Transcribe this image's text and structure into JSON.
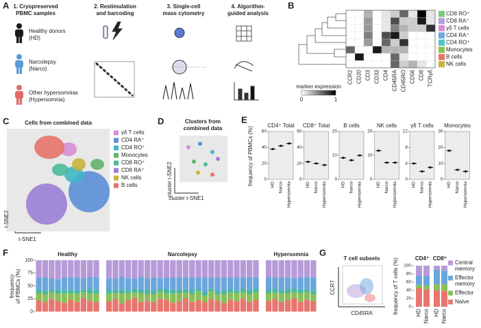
{
  "panel_a": {
    "label": "A",
    "steps": [
      [
        "1. Cryopreserved",
        "PBMC samples"
      ],
      [
        "2. Restimulation",
        "and barcoding"
      ],
      [
        "3. Single-cell",
        "mass cytometry"
      ],
      [
        "4. Algorithm-",
        "guided analysis"
      ]
    ],
    "groups": [
      {
        "lines": [
          "Healthy donors",
          "(HD)"
        ],
        "color": "#1a1a1a"
      },
      {
        "lines": [
          "Narcolepsy",
          "(Narco)"
        ],
        "color": "#5b9bd5"
      },
      {
        "lines": [
          "Other hypersomnias",
          "(Hypersomnia)"
        ],
        "color": "#e06a6a"
      }
    ]
  },
  "panel_b": {
    "label": "B",
    "markers": [
      "CCR2",
      "CD20",
      "CD3",
      "CD33",
      "CD4",
      "CD45RA",
      "CD45RO",
      "CD56",
      "CD8",
      "TCRγδ"
    ],
    "populations": [
      {
        "name": "CD8 RO⁺",
        "color": "#7fc97f"
      },
      {
        "name": "CD8 RA⁺",
        "color": "#b39ddb"
      },
      {
        "name": "γδ T cells",
        "color": "#d58fd3"
      },
      {
        "name": "CD4 RA⁺",
        "color": "#6fa8dc"
      },
      {
        "name": "CD4 RO⁺",
        "color": "#4fc3c9"
      },
      {
        "name": "Monocytes",
        "color": "#8bc34a"
      },
      {
        "name": "B cells",
        "color": "#e8736a"
      },
      {
        "name": "NK cells",
        "color": "#c8b43a"
      }
    ],
    "heatmap": [
      [
        0,
        0,
        0.3,
        0,
        0.1,
        0.2,
        0.6,
        0.1,
        1,
        0.1
      ],
      [
        0,
        0,
        0.4,
        0,
        0.1,
        0.7,
        0.2,
        0.2,
        0.9,
        0.1
      ],
      [
        0,
        0,
        0.4,
        0,
        0.1,
        0.5,
        0.3,
        0.2,
        0.2,
        0.8
      ],
      [
        0,
        0,
        0.5,
        0,
        0.7,
        0.9,
        0.2,
        0,
        0,
        0
      ],
      [
        0,
        0,
        0.4,
        0,
        0.6,
        0.2,
        0.8,
        0,
        0,
        0
      ],
      [
        0.6,
        0,
        0,
        0.9,
        0.3,
        0.3,
        0.3,
        0,
        0,
        0
      ],
      [
        0,
        0.9,
        0,
        0,
        0,
        0.6,
        0.1,
        0,
        0,
        0
      ],
      [
        0,
        0,
        0,
        0,
        0,
        0.6,
        0.2,
        0.3,
        0.1,
        0
      ]
    ],
    "colorbar_title": "marker expression",
    "colorbar_ticks": [
      0,
      1
    ]
  },
  "panel_c": {
    "label": "C",
    "title": "Cells from combined data",
    "x_label": "t-SNE1",
    "y_label": "t-SNE2",
    "legend": [
      {
        "name": "γδ T cells",
        "color": "#d58fd3"
      },
      {
        "name": "CD4 RA⁺",
        "color": "#5b8fd6"
      },
      {
        "name": "CD4 RO⁺",
        "color": "#3fb8c4"
      },
      {
        "name": "Monocytes",
        "color": "#62b36a"
      },
      {
        "name": "CD8 RO⁺",
        "color": "#4db99a"
      },
      {
        "name": "CD8 RA⁺",
        "color": "#9b7fd4"
      },
      {
        "name": "NK cells",
        "color": "#c8b43a"
      },
      {
        "name": "B cells",
        "color": "#e8736a"
      }
    ]
  },
  "panel_d": {
    "label": "D",
    "title": [
      "Clusters from",
      "combined data"
    ],
    "x_label": "cluster t-SNE1",
    "y_label": "cluster t-SNE2"
  },
  "panel_e": {
    "label": "E",
    "y_label": "frequency of PBMCs (%)",
    "groups": [
      "HD",
      "Narco",
      "Hypersomnia"
    ],
    "subpanels": [
      {
        "title": "CD4⁺ Total",
        "ylim": [
          0,
          60
        ],
        "yticks": [
          0,
          20,
          40,
          60
        ],
        "values": [
          38,
          42,
          45
        ]
      },
      {
        "title": "CD8⁺ Total",
        "ylim": [
          0,
          60
        ],
        "yticks": [
          0,
          20,
          40,
          60
        ],
        "values": [
          22,
          20,
          18
        ]
      },
      {
        "title": "B cells",
        "ylim": [
          0,
          20
        ],
        "yticks": [
          0,
          10,
          20
        ],
        "values": [
          9,
          8,
          10
        ]
      },
      {
        "title": "NK cells",
        "ylim": [
          0,
          20
        ],
        "yticks": [
          0,
          10,
          20
        ],
        "values": [
          12,
          7,
          7
        ]
      },
      {
        "title": "γδ T cells",
        "ylim": [
          0,
          12
        ],
        "yticks": [
          0,
          4,
          8,
          12
        ],
        "values": [
          4,
          2,
          3
        ]
      },
      {
        "title": "Monocytes",
        "ylim": [
          0,
          30
        ],
        "yticks": [
          0,
          10,
          20,
          30
        ],
        "values": [
          18,
          6,
          5
        ]
      }
    ]
  },
  "panel_f": {
    "label": "F",
    "y_label": [
      "frequency",
      "of PBMCs (%)"
    ],
    "ylim": [
      0,
      100
    ],
    "yticks": [
      0,
      25,
      50,
      75,
      100
    ],
    "layer_colors": [
      "#e8766f",
      "#8bbf5a",
      "#4bb89d",
      "#6aa6dc",
      "#b79bd8"
    ],
    "groups": [
      {
        "title": "Healthy",
        "samples": [
          [
            22,
            14,
            6,
            24,
            34
          ],
          [
            18,
            16,
            7,
            26,
            33
          ],
          [
            25,
            12,
            5,
            22,
            36
          ],
          [
            20,
            15,
            8,
            20,
            37
          ],
          [
            17,
            18,
            6,
            25,
            34
          ],
          [
            23,
            13,
            7,
            23,
            34
          ],
          [
            19,
            16,
            5,
            27,
            33
          ],
          [
            26,
            11,
            6,
            21,
            36
          ],
          [
            21,
            14,
            9,
            24,
            32
          ],
          [
            18,
            17,
            6,
            26,
            33
          ]
        ]
      },
      {
        "title": "Narcolepsy",
        "samples": [
          [
            20,
            15,
            7,
            23,
            35
          ],
          [
            24,
            12,
            6,
            22,
            36
          ],
          [
            16,
            19,
            8,
            25,
            32
          ],
          [
            22,
            14,
            5,
            24,
            35
          ],
          [
            27,
            10,
            7,
            20,
            36
          ],
          [
            19,
            17,
            6,
            26,
            32
          ],
          [
            21,
            13,
            8,
            23,
            35
          ],
          [
            18,
            16,
            6,
            27,
            33
          ],
          [
            25,
            14,
            5,
            21,
            35
          ],
          [
            23,
            12,
            9,
            22,
            34
          ],
          [
            17,
            18,
            7,
            24,
            34
          ],
          [
            20,
            16,
            6,
            25,
            33
          ],
          [
            26,
            11,
            6,
            23,
            34
          ],
          [
            19,
            15,
            8,
            24,
            34
          ],
          [
            22,
            17,
            5,
            22,
            34
          ],
          [
            18,
            13,
            7,
            28,
            34
          ],
          [
            24,
            15,
            6,
            21,
            34
          ],
          [
            21,
            12,
            8,
            25,
            34
          ],
          [
            16,
            18,
            6,
            26,
            34
          ],
          [
            23,
            14,
            7,
            22,
            34
          ],
          [
            20,
            16,
            5,
            25,
            34
          ],
          [
            25,
            13,
            6,
            23,
            33
          ],
          [
            19,
            15,
            9,
            24,
            33
          ],
          [
            22,
            16,
            6,
            23,
            33
          ]
        ]
      },
      {
        "title": "Hypersomnia",
        "samples": [
          [
            21,
            15,
            6,
            24,
            34
          ],
          [
            24,
            13,
            7,
            22,
            34
          ],
          [
            18,
            17,
            5,
            26,
            34
          ],
          [
            22,
            14,
            8,
            23,
            33
          ],
          [
            26,
            12,
            6,
            21,
            35
          ],
          [
            19,
            16,
            7,
            25,
            33
          ],
          [
            23,
            15,
            5,
            24,
            33
          ],
          [
            20,
            14,
            7,
            26,
            33
          ]
        ]
      }
    ]
  },
  "panel_g": {
    "label": "G",
    "title": "T cell subsets",
    "x_label": "CD45RA",
    "y_label": "CCR7",
    "bar_y_label": "frequency of T cells (%)",
    "ylim": [
      0,
      100
    ],
    "yticks": [
      0,
      20,
      40,
      60,
      80,
      100
    ],
    "groups": [
      "CD4⁺",
      "CD8⁺"
    ],
    "categories": [
      "HD",
      "Narco",
      "HD",
      "Narco"
    ],
    "series": [
      {
        "name": [
          "Naive"
        ],
        "color": "#e8766f",
        "values": [
          45,
          42,
          40,
          38
        ]
      },
      {
        "name": [
          "Effector"
        ],
        "color": "#8bbf5a",
        "values": [
          8,
          9,
          15,
          17
        ]
      },
      {
        "name": [
          "Effector",
          "memory"
        ],
        "color": "#6aa6dc",
        "values": [
          22,
          24,
          35,
          33
        ]
      },
      {
        "name": [
          "Central",
          "memory"
        ],
        "color": "#b79bd8",
        "values": [
          25,
          25,
          10,
          12
        ]
      }
    ]
  }
}
